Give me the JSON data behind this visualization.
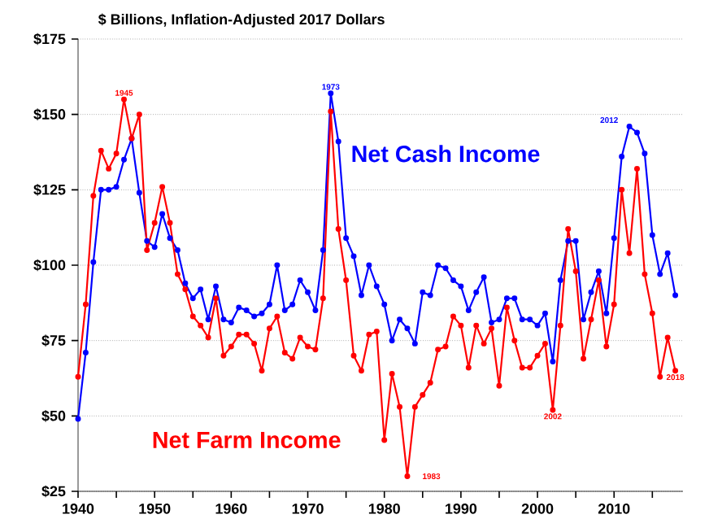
{
  "chart_data": {
    "type": "line",
    "title": "$ Billions, Inflation-Adjusted 2017 Dollars",
    "x": [
      1940,
      1941,
      1942,
      1943,
      1944,
      1945,
      1946,
      1947,
      1948,
      1949,
      1950,
      1951,
      1952,
      1953,
      1954,
      1955,
      1956,
      1957,
      1958,
      1959,
      1960,
      1961,
      1962,
      1963,
      1964,
      1965,
      1966,
      1967,
      1968,
      1969,
      1970,
      1971,
      1972,
      1973,
      1974,
      1975,
      1976,
      1977,
      1978,
      1979,
      1980,
      1981,
      1982,
      1983,
      1984,
      1985,
      1986,
      1987,
      1988,
      1989,
      1990,
      1991,
      1992,
      1993,
      1994,
      1995,
      1996,
      1997,
      1998,
      1999,
      2000,
      2001,
      2002,
      2003,
      2004,
      2005,
      2006,
      2007,
      2008,
      2009,
      2010,
      2011,
      2012,
      2013,
      2014,
      2015,
      2016,
      2017,
      2018
    ],
    "series": [
      {
        "name": "Net Cash Income",
        "color": "#0000ff",
        "values": [
          49,
          71,
          101,
          125,
          125,
          126,
          135,
          142,
          124,
          108,
          106,
          117,
          109,
          105,
          94,
          89,
          92,
          82,
          93,
          82,
          81,
          86,
          85,
          83,
          84,
          87,
          100,
          85,
          87,
          95,
          91,
          85,
          105,
          157,
          141,
          109,
          103,
          90,
          100,
          93,
          87,
          75,
          82,
          79,
          74,
          91,
          90,
          100,
          99,
          95,
          93,
          85,
          91,
          96,
          81,
          82,
          89,
          89,
          82,
          82,
          80,
          84,
          68,
          95,
          108,
          108,
          82,
          91,
          98,
          84,
          109,
          136,
          146,
          144,
          137,
          110,
          97,
          104,
          90
        ]
      },
      {
        "name": "Net Farm Income",
        "color": "#ff0000",
        "values": [
          63,
          87,
          123,
          138,
          132,
          137,
          155,
          142,
          150,
          105,
          114,
          126,
          114,
          97,
          92,
          83,
          80,
          76,
          89,
          70,
          73,
          77,
          77,
          74,
          65,
          79,
          83,
          71,
          69,
          76,
          73,
          72,
          89,
          151,
          112,
          95,
          70,
          65,
          77,
          78,
          42,
          64,
          53,
          30,
          53,
          57,
          61,
          72,
          73,
          83,
          80,
          66,
          80,
          74,
          79,
          60,
          86,
          75,
          66,
          66,
          70,
          74,
          52,
          80,
          112,
          98,
          69,
          82,
          95,
          73,
          87,
          125,
          104,
          132,
          97,
          84,
          63,
          76,
          65
        ]
      }
    ],
    "annotations": [
      {
        "text": "1945",
        "x": 1946,
        "y": 155
      },
      {
        "text": "1973",
        "x": 1973,
        "y": 157
      },
      {
        "text": "1983",
        "x": 1983,
        "y": 30
      },
      {
        "text": "2002",
        "x": 2002,
        "y": 52
      },
      {
        "text": "2012",
        "x": 2012,
        "y": 146
      },
      {
        "text": "2018",
        "x": 2018,
        "y": 65
      }
    ],
    "xlim": [
      1940,
      2019
    ],
    "xticks": [
      1940,
      {
        "value": 1945,
        "label": null
      },
      1950,
      {
        "value": 1955,
        "label": null
      },
      1960,
      {
        "value": 1965,
        "label": null
      },
      1970,
      {
        "value": 1975,
        "label": null
      },
      1980,
      {
        "value": 1985,
        "label": null
      },
      1990,
      {
        "value": 1995,
        "label": null
      },
      2000,
      {
        "value": 2005,
        "label": null
      },
      2010,
      {
        "value": 2015,
        "label": null
      }
    ],
    "ylim": [
      25,
      175
    ],
    "yticks": [
      {
        "value": 25,
        "label": "$25"
      },
      {
        "value": 50,
        "label": "$50"
      },
      {
        "value": 75,
        "label": "$75"
      },
      {
        "value": 100,
        "label": "$100"
      },
      {
        "value": 125,
        "label": "$125"
      },
      {
        "value": 150,
        "label": "$150"
      },
      {
        "value": 175,
        "label": "$175"
      }
    ],
    "grid": "y",
    "marker": "circle",
    "line_style": "solid",
    "legend": false
  }
}
